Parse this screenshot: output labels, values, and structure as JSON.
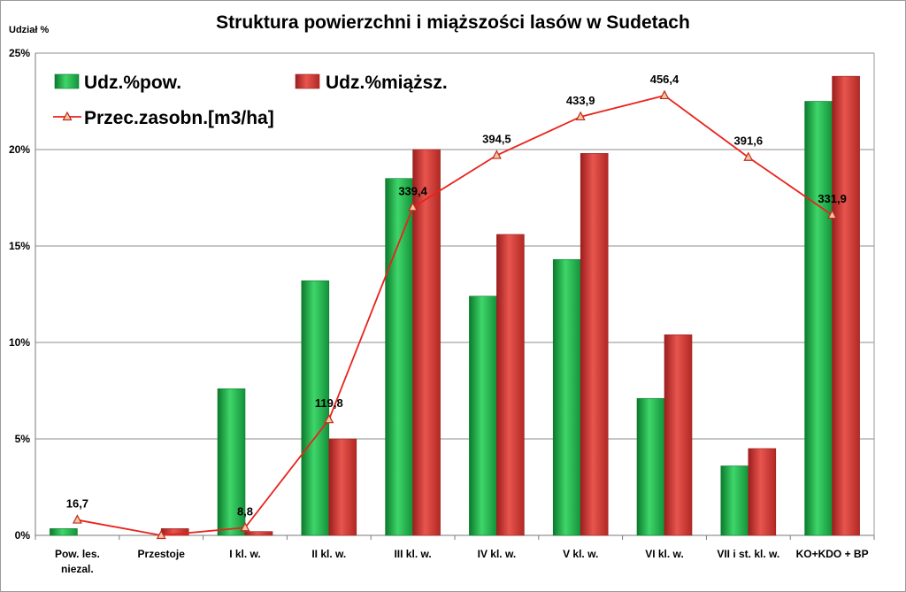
{
  "chart_data": {
    "type": "bar",
    "title": "Struktura powierzchni i miąższości lasów w Sudetach",
    "ylabel": "Udział  %",
    "ylim": [
      0,
      25
    ],
    "yticks": [
      "0%",
      "5%",
      "10%",
      "15%",
      "20%",
      "25%"
    ],
    "categories": [
      [
        "Pow. les.",
        "niezal."
      ],
      [
        "Przestoje"
      ],
      [
        "I kl. w."
      ],
      [
        "II kl. w."
      ],
      [
        "III kl. w."
      ],
      [
        "IV kl. w."
      ],
      [
        "V kl. w."
      ],
      [
        "VI kl. w."
      ],
      [
        "VII i st. kl. w."
      ],
      [
        "KO+KDO + BP"
      ]
    ],
    "series": [
      {
        "name": "Udz.%pow.",
        "type": "bar",
        "color": "#1fb04a",
        "values": [
          0.35,
          0,
          7.6,
          13.2,
          18.5,
          12.4,
          14.3,
          7.1,
          3.6,
          22.5
        ]
      },
      {
        "name": "Udz.%miąższ.",
        "type": "bar",
        "color": "#d63a35",
        "values": [
          0,
          0.35,
          0.2,
          5.0,
          20.0,
          15.6,
          19.8,
          10.4,
          4.5,
          23.8
        ]
      }
    ],
    "line_series": {
      "name": "Przec.zasobn.[m3/ha]",
      "type": "line",
      "color": "#e8231c",
      "plot_percent": [
        0.8,
        0.0,
        0.4,
        6.0,
        17.0,
        19.7,
        21.7,
        22.8,
        19.6,
        16.6
      ],
      "labels": [
        "16,7",
        "",
        "8,8",
        "119,8",
        "339,4",
        "394,5",
        "433,9",
        "456,4",
        "391,6",
        "331,9"
      ]
    },
    "grid": true,
    "legend_position": "top-left"
  }
}
